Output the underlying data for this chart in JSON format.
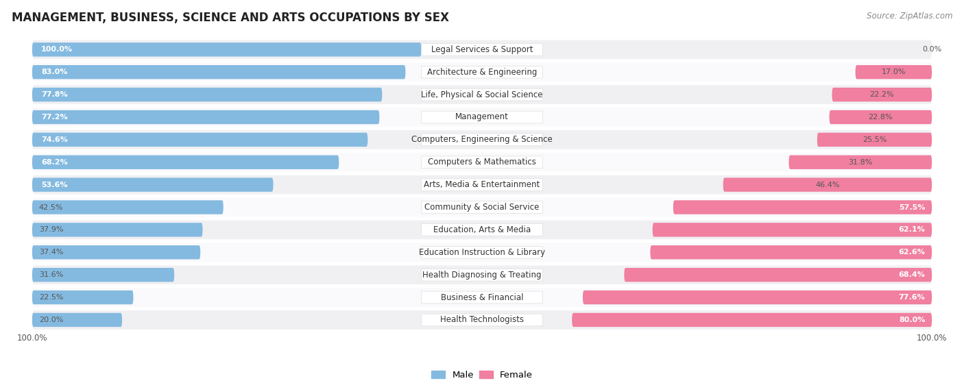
{
  "title": "MANAGEMENT, BUSINESS, SCIENCE AND ARTS OCCUPATIONS BY SEX",
  "source": "Source: ZipAtlas.com",
  "categories": [
    "Legal Services & Support",
    "Architecture & Engineering",
    "Life, Physical & Social Science",
    "Management",
    "Computers, Engineering & Science",
    "Computers & Mathematics",
    "Arts, Media & Entertainment",
    "Community & Social Service",
    "Education, Arts & Media",
    "Education Instruction & Library",
    "Health Diagnosing & Treating",
    "Business & Financial",
    "Health Technologists"
  ],
  "male": [
    100.0,
    83.0,
    77.8,
    77.2,
    74.6,
    68.2,
    53.6,
    42.5,
    37.9,
    37.4,
    31.6,
    22.5,
    20.0
  ],
  "female": [
    0.0,
    17.0,
    22.2,
    22.8,
    25.5,
    31.8,
    46.4,
    57.5,
    62.1,
    62.6,
    68.4,
    77.6,
    80.0
  ],
  "male_color": "#85BAE0",
  "female_color": "#F07FA0",
  "capsule_bg_color": "#E8E8EB",
  "row_even_color": "#F0F0F3",
  "row_odd_color": "#FAFAFC",
  "title_fontsize": 12,
  "label_fontsize": 8.5,
  "bar_label_fontsize": 8,
  "legend_fontsize": 9.5
}
